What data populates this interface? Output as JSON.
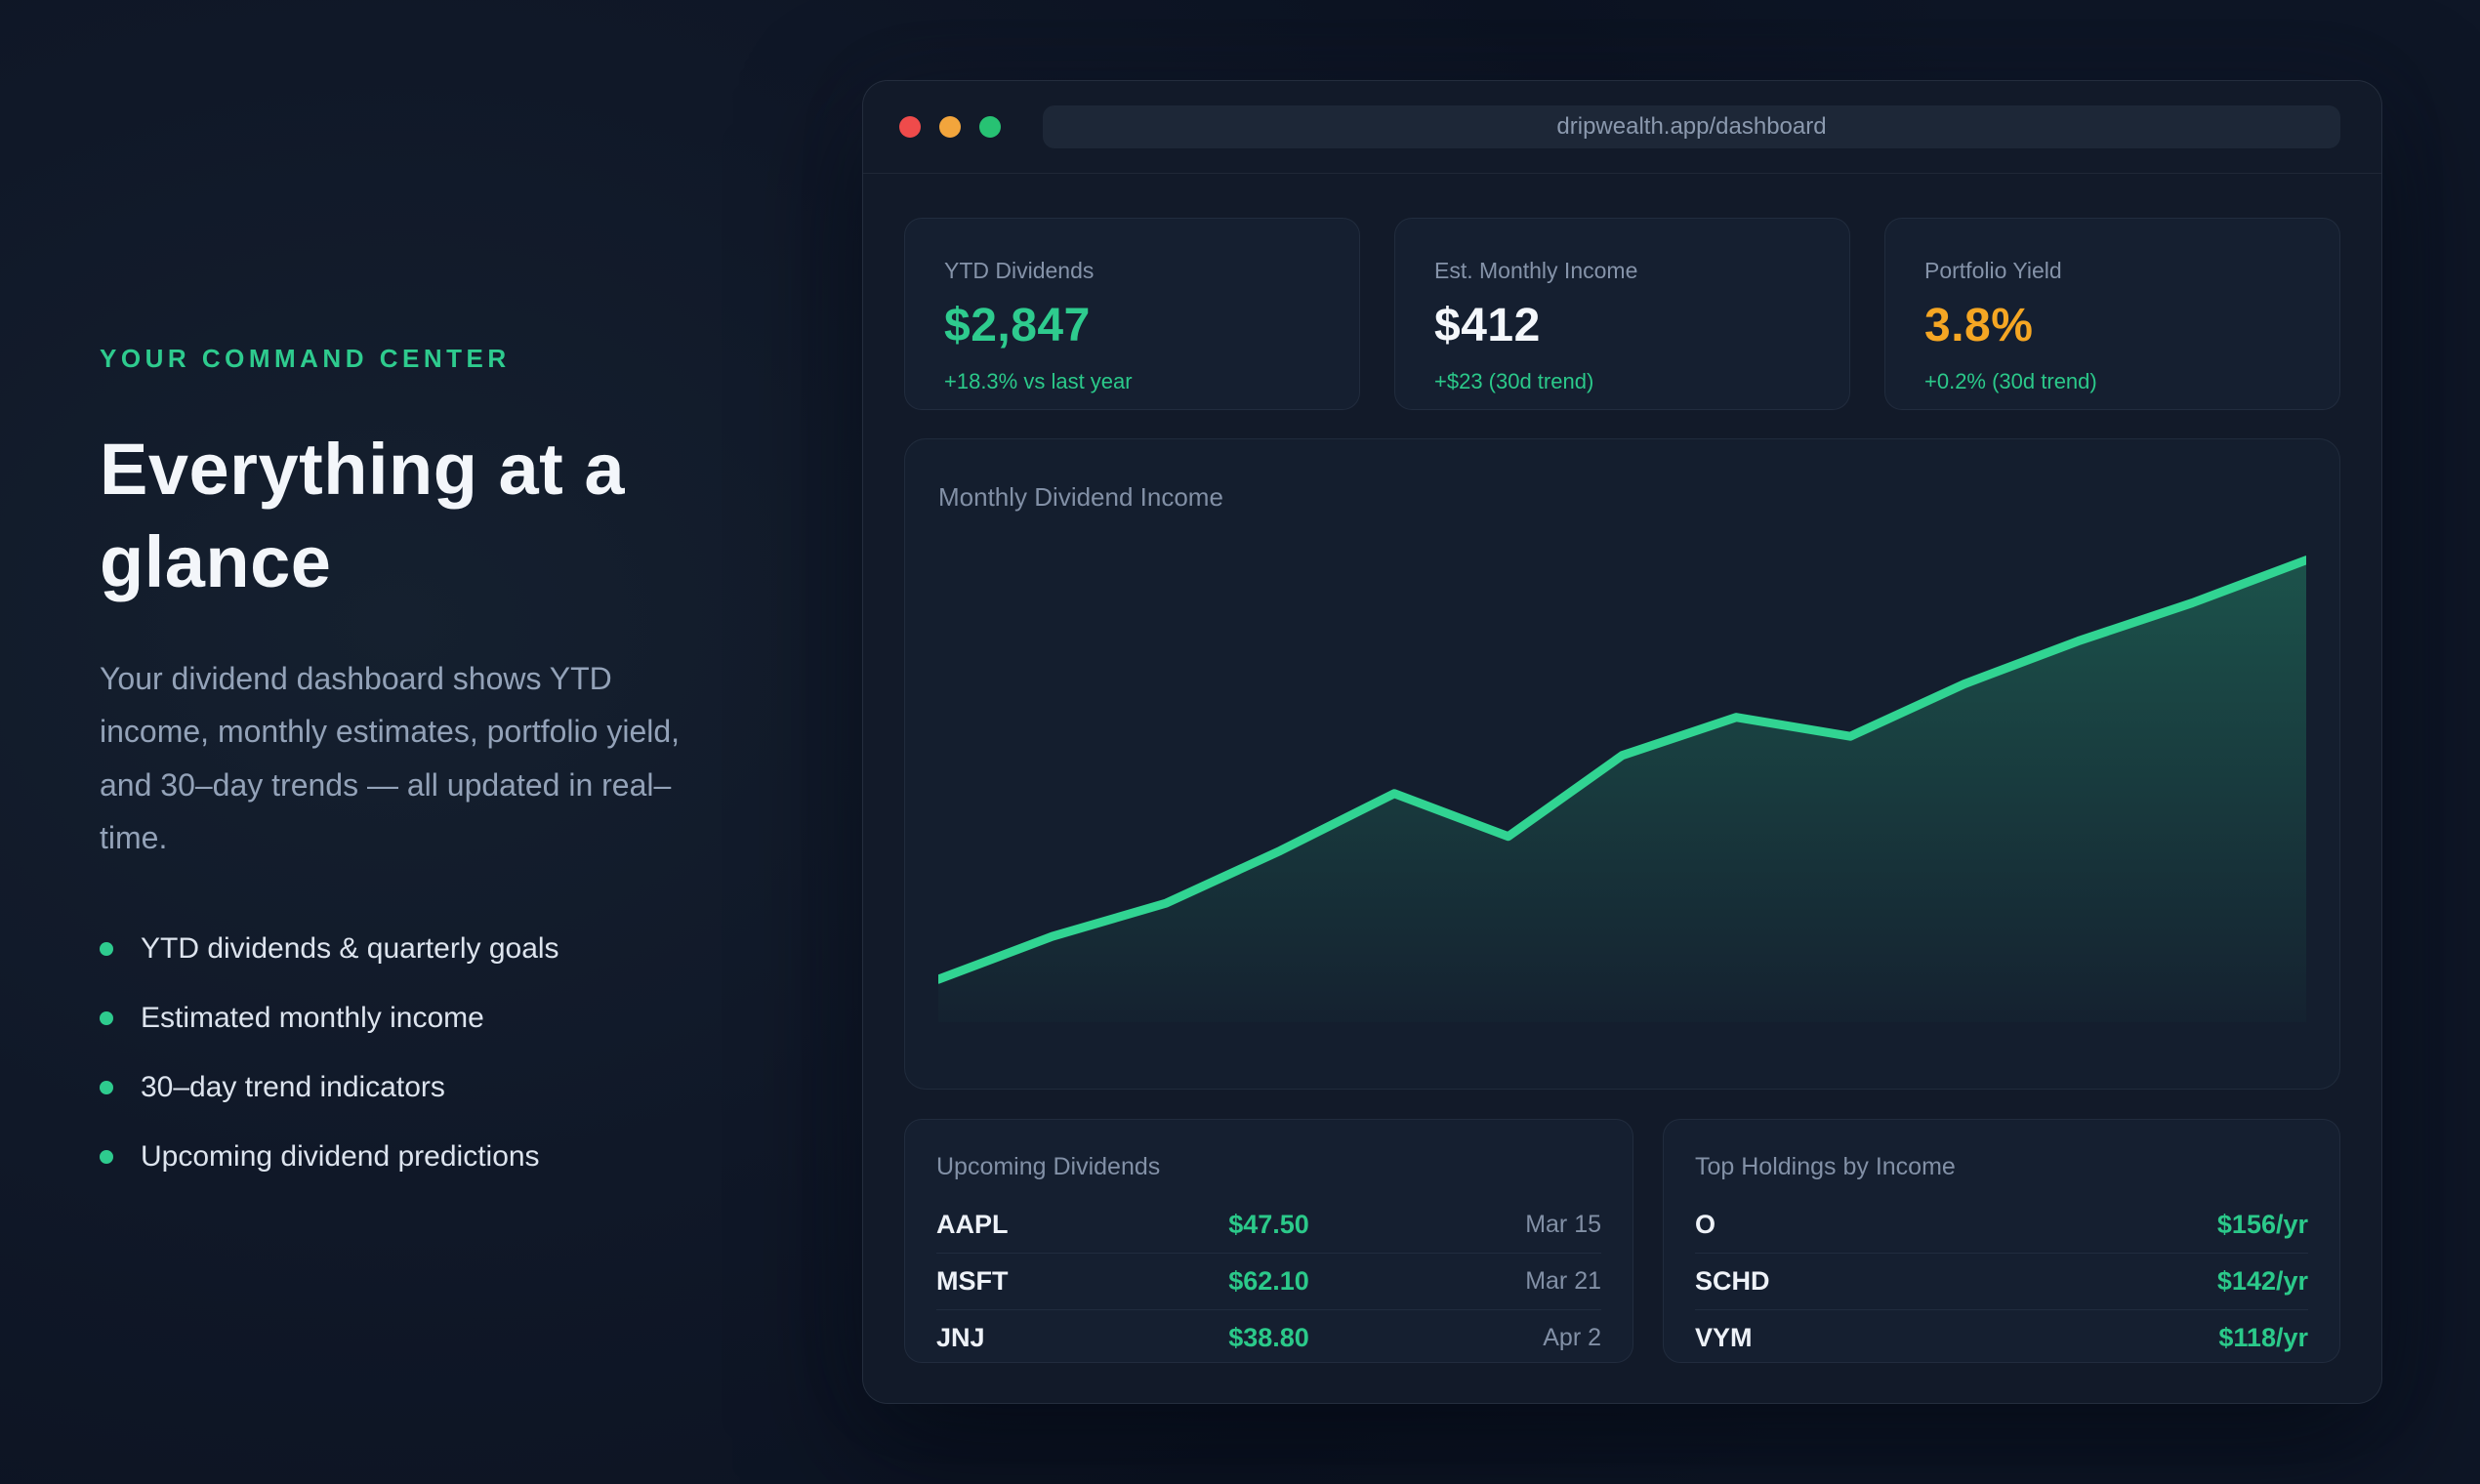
{
  "colors": {
    "accent_green": "#2ecb8e",
    "accent_orange": "#f5a623",
    "value_white": "#f4f7fb",
    "traffic_red": "#ef4b4b",
    "traffic_yellow": "#f2a53c",
    "traffic_green": "#27c273"
  },
  "hero": {
    "eyebrow": "YOUR COMMAND CENTER",
    "heading": "Everything at a glance",
    "description": "Your dividend dashboard shows YTD income, monthly estimates, portfolio yield, and 30–day trends — all updated in real–time.",
    "bullets": [
      "YTD dividends & quarterly goals",
      "Estimated monthly income",
      "30–day trend indicators",
      "Upcoming dividend predictions"
    ]
  },
  "browser": {
    "url": "dripwealth.app/dashboard"
  },
  "stats": {
    "cards": [
      {
        "label": "YTD Dividends",
        "value": "$2,847",
        "delta": "+18.3% vs last year",
        "value_color": "#2ecb8e"
      },
      {
        "label": "Est. Monthly Income",
        "value": "$412",
        "delta": "+$23 (30d trend)",
        "value_color": "#f4f7fb"
      },
      {
        "label": "Portfolio Yield",
        "value": "3.8%",
        "delta": "+0.2% (30d trend)",
        "value_color": "#f5a623"
      }
    ]
  },
  "chart_data": {
    "type": "area",
    "title": "Monthly Dividend Income",
    "x": [
      1,
      2,
      3,
      4,
      5,
      6,
      7,
      8,
      9,
      10,
      11,
      12,
      13
    ],
    "values": [
      9,
      18,
      25,
      36,
      48,
      39,
      56,
      64,
      60,
      71,
      80,
      88,
      97
    ],
    "xlabel": "",
    "ylabel": "",
    "ylim": [
      0,
      100
    ],
    "grid": false,
    "axes_visible": false,
    "legend": "none",
    "line_color": "#31d492",
    "fill_gradient": [
      "rgba(46,204,142,0.30)",
      "rgba(46,204,142,0.02)"
    ]
  },
  "upcoming": {
    "title": "Upcoming Dividends",
    "rows": [
      {
        "ticker": "AAPL",
        "amount": "$47.50",
        "date": "Mar 15"
      },
      {
        "ticker": "MSFT",
        "amount": "$62.10",
        "date": "Mar 21"
      },
      {
        "ticker": "JNJ",
        "amount": "$38.80",
        "date": "Apr 2"
      }
    ]
  },
  "holdings": {
    "title": "Top Holdings by Income",
    "rows": [
      {
        "ticker": "O",
        "amount": "$156/yr"
      },
      {
        "ticker": "SCHD",
        "amount": "$142/yr"
      },
      {
        "ticker": "VYM",
        "amount": "$118/yr"
      }
    ]
  }
}
